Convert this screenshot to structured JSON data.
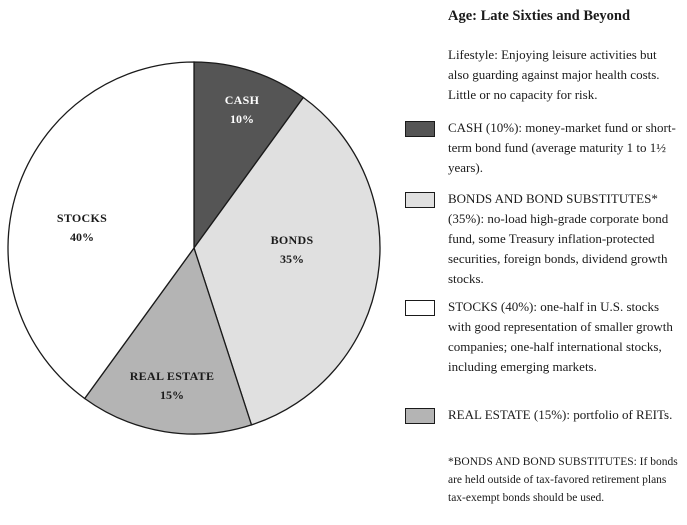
{
  "chart_data": {
    "type": "pie",
    "title": "Age: Late Sixties and Beyond",
    "slices": [
      {
        "label": "CASH",
        "pct_label": "10%",
        "value": 10,
        "color": "#555555"
      },
      {
        "label": "BONDS",
        "pct_label": "35%",
        "value": 35,
        "color": "#e0e0e0"
      },
      {
        "label": "REAL ESTATE",
        "pct_label": "15%",
        "value": 15,
        "color": "#b4b4b4"
      },
      {
        "label": "STOCKS",
        "pct_label": "40%",
        "value": 40,
        "color": "#ffffff"
      }
    ]
  },
  "panel": {
    "title": "Age: Late Sixties and Beyond",
    "lifestyle": "Lifestyle: Enjoying leisure activities but also guarding against major health costs. Little or no capacity for risk.",
    "legend": [
      {
        "text": "CASH (10%): money-market fund or short-term bond fund (average maturity 1 to 1½ years).",
        "color": "#555555"
      },
      {
        "text": "BONDS AND BOND SUBSTITUTES* (35%): no-load high-grade corporate bond fund, some Treasury inflation-protected securities, foreign bonds, dividend growth stocks.",
        "color": "#e0e0e0"
      },
      {
        "text": "STOCKS (40%): one-half in U.S. stocks with good representation of smaller growth companies; one-half international stocks, including emerging markets.",
        "color": "#ffffff"
      },
      {
        "text": "REAL ESTATE (15%): portfolio of REITs.",
        "color": "#b4b4b4"
      }
    ],
    "footnote": "*BONDS AND BOND SUBSTITUTES: If bonds are held outside of tax-favored retirement plans tax-exempt bonds should be used."
  }
}
